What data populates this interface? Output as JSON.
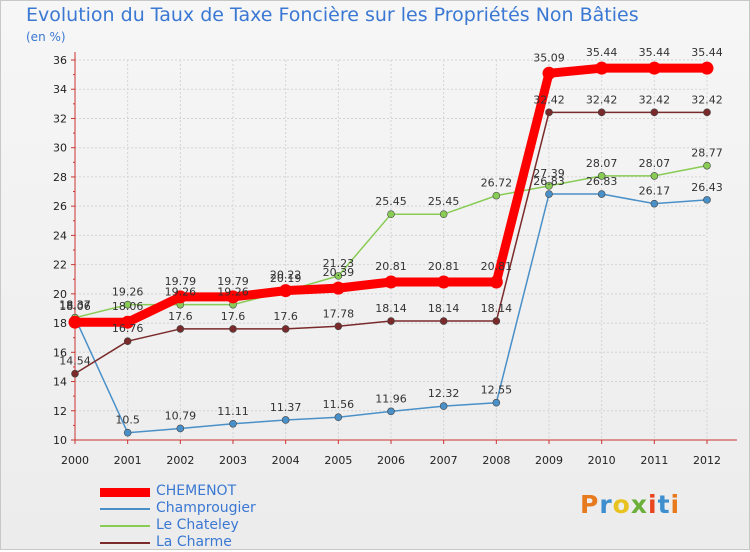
{
  "title": "Evolution du Taux de Taxe Foncière sur les Propriétés Non Bâties",
  "unit": "(en %)",
  "logo": "Proxiti",
  "chart_data": {
    "type": "line",
    "title": "Evolution du Taux de Taxe Foncière sur les Propriétés Non Bâties",
    "ylabel": "(en %)",
    "x": [
      "2000",
      "2001",
      "2002",
      "2003",
      "2004",
      "2005",
      "2006",
      "2007",
      "2008",
      "2009",
      "2010",
      "2011",
      "2012"
    ],
    "ylim": [
      10,
      36
    ],
    "yticks": [
      "10",
      "12",
      "14",
      "16",
      "18",
      "20",
      "22",
      "24",
      "26",
      "28",
      "30",
      "32",
      "34",
      "36"
    ],
    "grid": true,
    "legend_position": "bottom-left",
    "series": [
      {
        "name": "CHEMENOT",
        "color": "#ff0000",
        "values": [
          18.06,
          18.06,
          19.79,
          19.79,
          20.22,
          20.39,
          20.81,
          20.81,
          20.81,
          35.09,
          35.44,
          35.44,
          35.44
        ],
        "labels": [
          "18.06",
          "18.06",
          "19.79",
          "19.79",
          "20.22",
          "20.39",
          "20.81",
          "20.81",
          "20.81",
          "35.09",
          "35.44",
          "35.44",
          "35.44"
        ]
      },
      {
        "name": "Champrougier",
        "color": "#4a90c8",
        "values": [
          18.37,
          10.5,
          10.79,
          11.11,
          11.37,
          11.56,
          11.96,
          12.32,
          12.55,
          26.83,
          26.83,
          26.17,
          26.43
        ],
        "labels": [
          "18.37",
          "10.5",
          "10.79",
          "11.11",
          "11.37",
          "11.56",
          "11.96",
          "12.32",
          "12.55",
          "26.83",
          "26.83",
          "26.17",
          "26.43"
        ]
      },
      {
        "name": "Le Chateley",
        "color": "#88cc55",
        "values": [
          18.37,
          19.26,
          19.26,
          19.26,
          20.19,
          21.23,
          25.45,
          25.45,
          26.72,
          27.39,
          28.07,
          28.07,
          28.77
        ],
        "labels": [
          "18.37",
          "19.26",
          "19.26",
          "19.26",
          "20.19",
          "21.23",
          "25.45",
          "25.45",
          "26.72",
          "27.39",
          "28.07",
          "28.07",
          "28.77"
        ]
      },
      {
        "name": "La Charme",
        "color": "#7a2a2a",
        "values": [
          14.54,
          16.76,
          17.6,
          17.6,
          17.6,
          17.78,
          18.14,
          18.14,
          18.14,
          32.42,
          32.42,
          32.42,
          32.42
        ],
        "labels": [
          "14.54",
          "16.76",
          "17.6",
          "17.6",
          "17.6",
          "17.78",
          "18.14",
          "18.14",
          "18.14",
          "32.42",
          "32.42",
          "32.42",
          "32.42"
        ]
      }
    ]
  }
}
